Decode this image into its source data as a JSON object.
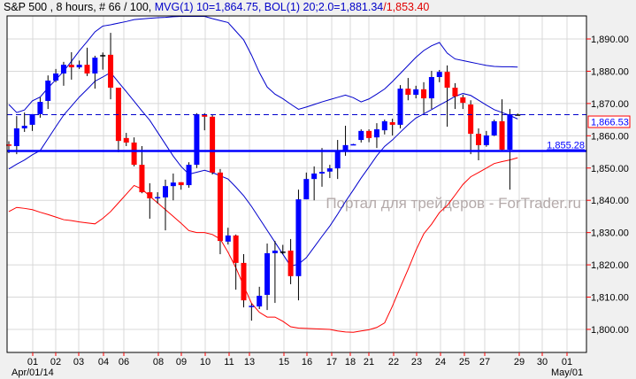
{
  "header": {
    "symbol_info": "S&P 500 , 8 hours, # 66 / 100, ",
    "indicators_blue": "MVG(1) 10=1,864.75, BOL(1) 20;2.0=1,881.34",
    "indicator_red": "/1,853.40"
  },
  "watermark": "Портал для трейдеров - ForTrader.ru",
  "colors": {
    "bull": "#0000ff",
    "bear": "#ff0000",
    "ma": "#0000cc",
    "upper_band": "#0000cc",
    "lower_band": "#ff0000",
    "grid": "#d8d8d8"
  },
  "chart_data": {
    "type": "candlestick",
    "title": "S&P 500 , 8 hours",
    "ylim": [
      1797,
      1898
    ],
    "y_ticks": [
      "1,800.00",
      "1,810.00",
      "1,820.00",
      "1,830.00",
      "1,840.00",
      "1,850.00",
      "1,860.00",
      "1,870.00",
      "1,880.00",
      "1,890.00"
    ],
    "y_tick_values": [
      1800,
      1810,
      1820,
      1830,
      1840,
      1850,
      1860,
      1870,
      1880,
      1890
    ],
    "x_ticks": [
      "01",
      "02",
      "03",
      "04",
      "06",
      "08",
      "09",
      "10",
      "11",
      "13",
      "15",
      "16",
      "17",
      "18",
      "21",
      "22",
      "23",
      "24",
      "25",
      "27",
      "29",
      "30",
      "01"
    ],
    "x_start_label": "Apr/01/14",
    "x_end_label": "May/01",
    "grid": true,
    "ohlc": [
      [
        1857.3,
        1858.3,
        1854.6,
        1857.0
      ],
      [
        1856.8,
        1866.1,
        1854.3,
        1862.3
      ],
      [
        1862.3,
        1867.2,
        1861.2,
        1863.1
      ],
      [
        1863.4,
        1866.7,
        1861.5,
        1866.7
      ],
      [
        1866.7,
        1871.9,
        1865.6,
        1870.5
      ],
      [
        1870.8,
        1878.7,
        1868.3,
        1877.1
      ],
      [
        1877.1,
        1880.7,
        1876.6,
        1879.3
      ],
      [
        1879.3,
        1882.9,
        1875.5,
        1882.0
      ],
      [
        1882.0,
        1885.9,
        1877.4,
        1881.2
      ],
      [
        1881.2,
        1883.3,
        1880.7,
        1882.0
      ],
      [
        1882.0,
        1887.3,
        1878.5,
        1879.3
      ],
      [
        1879.3,
        1884.8,
        1874.6,
        1884.2
      ],
      [
        1885.0,
        1885.8,
        1880.5,
        1885.0
      ],
      [
        1885.1,
        1891.9,
        1871.3,
        1874.9
      ],
      [
        1874.9,
        1874.9,
        1854.9,
        1858.4
      ],
      [
        1859.3,
        1860.9,
        1856.8,
        1857.9
      ],
      [
        1857.9,
        1859.5,
        1850.5,
        1851.0
      ],
      [
        1851.0,
        1856.8,
        1842.2,
        1842.5
      ],
      [
        1842.5,
        1845.3,
        1834.3,
        1840.6
      ],
      [
        1840.7,
        1842.5,
        1839.0,
        1841.0
      ],
      [
        1840.9,
        1846.4,
        1830.7,
        1844.4
      ],
      [
        1844.4,
        1848.3,
        1840.0,
        1845.5
      ],
      [
        1845.6,
        1845.6,
        1843.3,
        1844.7
      ],
      [
        1844.7,
        1851.8,
        1843.9,
        1851.0
      ],
      [
        1851.0,
        1867.0,
        1850.0,
        1866.7
      ],
      [
        1866.5,
        1867.0,
        1861.7,
        1865.9
      ],
      [
        1865.9,
        1866.4,
        1848.0,
        1848.6
      ],
      [
        1848.6,
        1849.7,
        1823.3,
        1827.4
      ],
      [
        1827.2,
        1831.5,
        1826.3,
        1829.1
      ],
      [
        1829.1,
        1829.4,
        1812.3,
        1820.6
      ],
      [
        1820.6,
        1823.3,
        1806.8,
        1809.0
      ],
      [
        1806.9,
        1808.0,
        1802.7,
        1807.3
      ],
      [
        1807.1,
        1813.2,
        1806.3,
        1810.4
      ],
      [
        1810.7,
        1826.6,
        1806.0,
        1823.6
      ],
      [
        1823.6,
        1827.4,
        1808.2,
        1824.4
      ],
      [
        1824.1,
        1826.2,
        1823.3,
        1824.1
      ],
      [
        1824.4,
        1828.0,
        1814.0,
        1816.5
      ],
      [
        1816.5,
        1843.3,
        1809.0,
        1840.3
      ],
      [
        1840.3,
        1848.6,
        1840.3,
        1846.6
      ],
      [
        1846.6,
        1850.5,
        1840.0,
        1848.3
      ],
      [
        1848.3,
        1856.2,
        1844.2,
        1848.8
      ],
      [
        1848.9,
        1851.0,
        1846.9,
        1849.9
      ],
      [
        1849.9,
        1858.7,
        1846.6,
        1855.4
      ],
      [
        1855.4,
        1863.1,
        1853.8,
        1857.1
      ],
      [
        1857.2,
        1857.5,
        1857.1,
        1857.4
      ],
      [
        1858.7,
        1862.0,
        1857.9,
        1861.5
      ],
      [
        1861.5,
        1862.0,
        1858.0,
        1859.3
      ],
      [
        1859.5,
        1863.9,
        1856.2,
        1862.0
      ],
      [
        1861.7,
        1865.0,
        1860.4,
        1864.5
      ],
      [
        1864.2,
        1865.3,
        1860.1,
        1863.4
      ],
      [
        1863.4,
        1875.7,
        1862.3,
        1874.6
      ],
      [
        1874.6,
        1877.9,
        1871.0,
        1872.7
      ],
      [
        1872.7,
        1875.5,
        1871.6,
        1874.4
      ],
      [
        1874.4,
        1876.6,
        1867.0,
        1871.6
      ],
      [
        1871.6,
        1880.1,
        1868.3,
        1878.2
      ],
      [
        1878.2,
        1880.4,
        1876.6,
        1879.8
      ],
      [
        1879.8,
        1881.8,
        1862.8,
        1874.9
      ],
      [
        1874.9,
        1876.3,
        1868.3,
        1872.2
      ],
      [
        1871.9,
        1872.7,
        1868.3,
        1870.2
      ],
      [
        1869.7,
        1871.0,
        1854.3,
        1860.6
      ],
      [
        1860.6,
        1862.3,
        1852.4,
        1857.1
      ],
      [
        1857.1,
        1861.5,
        1856.6,
        1860.1
      ],
      [
        1860.1,
        1865.0,
        1859.9,
        1864.5
      ],
      [
        1864.5,
        1871.3,
        1855.4,
        1855.7
      ],
      [
        1855.7,
        1868.3,
        1843.3,
        1866.7
      ],
      [
        1866.6,
        1866.9,
        1866.3,
        1866.6
      ]
    ],
    "ma": [
      1849.7,
      1851.2,
      1852.5,
      1854.1,
      1855.4,
      1859.1,
      1862.8,
      1866.4,
      1869.2,
      1872.0,
      1874.4,
      1876.9,
      1878.2,
      1879.6,
      1876.6,
      1873.7,
      1870.7,
      1867.7,
      1864.8,
      1861.1,
      1857.4,
      1853.7,
      1850.5,
      1848.1,
      1848.7,
      1849.3,
      1848.6,
      1847.6,
      1846.6,
      1844.1,
      1841.4,
      1838.1,
      1834.4,
      1830.7,
      1827.0,
      1823.3,
      1819.6,
      1820.2,
      1822.2,
      1825.5,
      1828.8,
      1832.0,
      1835.7,
      1839.6,
      1843.2,
      1846.9,
      1850.3,
      1853.8,
      1856.7,
      1858.7,
      1861.1,
      1863.4,
      1865.5,
      1866.8,
      1868.1,
      1869.5,
      1870.8,
      1872.2,
      1873.1,
      1872.5,
      1871.0,
      1869.5,
      1868.1,
      1867.2,
      1866.3,
      1865.2
    ],
    "upper_band": [
      1869.7,
      1867.2,
      1868.0,
      1870.8,
      1872.0,
      1874.8,
      1877.4,
      1880.0,
      1883.1,
      1886.3,
      1889.2,
      1892.2,
      1894.0,
      1894.4,
      1894.9,
      1895.4,
      1896.0,
      1896.2,
      1896.4,
      1896.6,
      1896.7,
      1896.9,
      1897.0,
      1897.0,
      1897.0,
      1897.0,
      1896.3,
      1895.7,
      1895.1,
      1892.4,
      1889.7,
      1885.0,
      1879.6,
      1875.1,
      1872.9,
      1871.5,
      1869.8,
      1868.2,
      1868.9,
      1869.7,
      1870.5,
      1871.2,
      1871.9,
      1872.6,
      1871.8,
      1870.5,
      1871.4,
      1872.9,
      1874.5,
      1876.8,
      1879.3,
      1881.8,
      1884.3,
      1886.4,
      1887.9,
      1888.9,
      1885.6,
      1883.8,
      1883.3,
      1882.8,
      1882.3,
      1881.8,
      1881.5,
      1881.4,
      1881.4,
      1881.3
    ],
    "lower_band": [
      1836.5,
      1837.8,
      1837.5,
      1837.1,
      1836.3,
      1835.6,
      1834.8,
      1834.0,
      1833.7,
      1833.3,
      1833.0,
      1832.7,
      1834.4,
      1836.5,
      1839.2,
      1841.9,
      1844.6,
      1843.5,
      1841.3,
      1839.2,
      1837.1,
      1835.0,
      1832.9,
      1830.6,
      1830.0,
      1830.0,
      1829.4,
      1828.0,
      1823.9,
      1819.1,
      1813.5,
      1808.1,
      1805.3,
      1803.8,
      1803.8,
      1802.5,
      1800.8,
      1800.4,
      1800.3,
      1800.2,
      1800.1,
      1800.0,
      1799.5,
      1799.2,
      1799.1,
      1799.5,
      1799.9,
      1800.6,
      1802.0,
      1807.2,
      1813.0,
      1818.6,
      1824.5,
      1829.6,
      1832.6,
      1836.2,
      1838.4,
      1841.6,
      1844.9,
      1847.3,
      1848.6,
      1850.0,
      1851.4,
      1852.0,
      1852.5,
      1853.2
    ],
    "price_lines": [
      {
        "value": 1855.28,
        "label": "1,855.28",
        "style": "solid"
      },
      {
        "value": 1866.53,
        "label": "1,866.53",
        "style": "dashed"
      }
    ]
  }
}
